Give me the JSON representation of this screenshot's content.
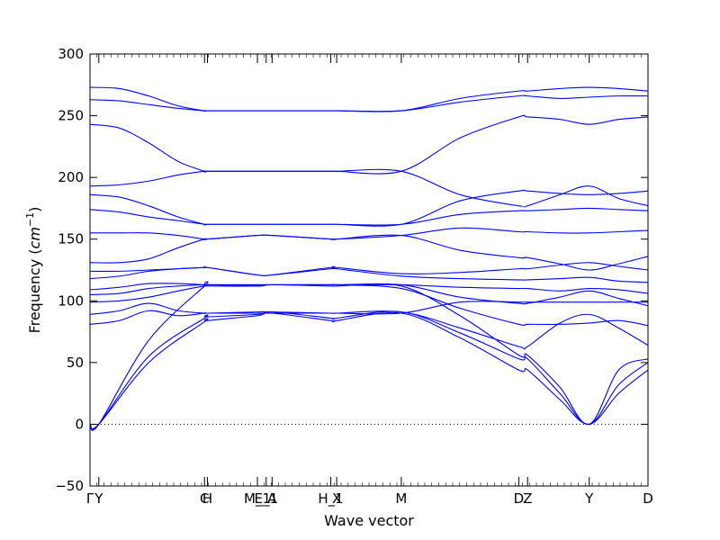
{
  "chart_data": {
    "type": "line",
    "title": "",
    "xlabel": "Wave vector",
    "ylabel": "Frequency",
    "ylabel_unit": "cm",
    "ylabel_unit_exponent": "−1",
    "ylim": [
      -50,
      300
    ],
    "yticks": [
      -50,
      0,
      50,
      100,
      150,
      200,
      250,
      300
    ],
    "xlim": [
      0,
      9.5
    ],
    "xticks": [
      {
        "pos": 0.0,
        "label": "Γ"
      },
      {
        "pos": 0.15,
        "label": "Y"
      },
      {
        "pos": 1.95,
        "label": "C"
      },
      {
        "pos": 2.0,
        "label": "H"
      },
      {
        "pos": 2.85,
        "label": "M_1"
      },
      {
        "pos": 3.0,
        "label": "E_1"
      },
      {
        "pos": 3.1,
        "label": "A"
      },
      {
        "pos": 4.1,
        "label": "H_1"
      },
      {
        "pos": 4.2,
        "label": "X"
      },
      {
        "pos": 5.3,
        "label": "M"
      },
      {
        "pos": 7.3,
        "label": "D"
      },
      {
        "pos": 7.45,
        "label": "Z"
      },
      {
        "pos": 8.5,
        "label": "Y"
      },
      {
        "pos": 9.5,
        "label": "D"
      }
    ],
    "zero_line": true,
    "line_color": "#0000ff",
    "series": [
      {
        "x": [
          0,
          0.15,
          1.0,
          1.95,
          2.0,
          2.85,
          3.1,
          4.1,
          4.2,
          5.3,
          6.3,
          7.3,
          7.45,
          8.0,
          8.5,
          9.0,
          9.5
        ],
        "y": [
          0,
          0,
          50,
          83,
          84,
          88,
          90,
          84,
          84,
          90,
          70,
          44,
          44,
          20,
          0,
          25,
          44
        ]
      },
      {
        "x": [
          0,
          0.15,
          1.0,
          1.95,
          2.0,
          2.85,
          3.1,
          4.1,
          4.2,
          5.3,
          6.3,
          7.3,
          7.45,
          8.0,
          8.5,
          9.0,
          9.5
        ],
        "y": [
          0,
          0,
          55,
          86,
          87,
          89,
          91,
          86,
          86,
          91,
          74,
          53,
          53,
          25,
          0,
          32,
          50
        ]
      },
      {
        "x": [
          0,
          0.15,
          1.0,
          1.95,
          2.0,
          2.85,
          3.1,
          4.1,
          4.2,
          5.3,
          6.3,
          7.3,
          7.45,
          8.0,
          8.5,
          9.0,
          9.5
        ],
        "y": [
          0,
          0,
          68,
          112,
          113,
          112,
          113,
          112,
          112,
          112,
          88,
          56,
          56,
          30,
          0,
          44,
          53
        ]
      },
      {
        "x": [
          0,
          0.5,
          1.0,
          1.5,
          1.95,
          2.0,
          2.85,
          3.1,
          4.1,
          4.2,
          5.3,
          6.3,
          7.3,
          7.45,
          8.0,
          8.5,
          9.0,
          9.5
        ],
        "y": [
          81,
          84,
          92,
          88,
          90,
          90,
          90,
          90,
          90,
          90,
          90,
          99,
          99,
          99,
          99,
          99,
          99,
          99
        ]
      },
      {
        "x": [
          0,
          0.5,
          1.0,
          1.5,
          1.95,
          2.0,
          2.85,
          3.1,
          4.1,
          4.2,
          5.3,
          6.3,
          7.3,
          7.45,
          8.0,
          8.5,
          9.0,
          9.5
        ],
        "y": [
          89,
          92,
          98,
          92,
          90,
          90,
          91,
          91,
          90,
          90,
          91,
          78,
          63,
          63,
          82,
          89,
          78,
          64
        ]
      },
      {
        "x": [
          0,
          0.5,
          1.0,
          1.5,
          1.95,
          2.0,
          2.85,
          3.1,
          4.1,
          4.2,
          5.3,
          6.3,
          7.3,
          7.45,
          8.0,
          8.5,
          9.0,
          9.5
        ],
        "y": [
          99,
          100,
          103,
          108,
          112,
          112,
          112,
          113,
          113,
          113,
          110,
          94,
          81,
          81,
          81,
          82,
          84,
          80
        ]
      },
      {
        "x": [
          0,
          0.5,
          1.0,
          1.5,
          1.95,
          2.0,
          2.85,
          3.1,
          4.1,
          4.2,
          5.3,
          6.3,
          7.3,
          7.45,
          8.0,
          8.5,
          9.0,
          9.5
        ],
        "y": [
          105,
          106,
          110,
          112,
          113,
          113,
          113,
          113,
          113,
          113,
          113,
          103,
          98,
          98,
          103,
          108,
          102,
          96
        ]
      },
      {
        "x": [
          0,
          0.5,
          1.0,
          1.5,
          1.95,
          2.0,
          2.85,
          3.1,
          4.1,
          4.2,
          5.3,
          6.3,
          7.3,
          7.45,
          8.0,
          8.5,
          9.0,
          9.5
        ],
        "y": [
          109,
          111,
          114,
          114,
          113,
          113,
          113,
          113,
          113,
          113,
          113,
          111,
          110,
          110,
          108,
          110,
          109,
          106
        ]
      },
      {
        "x": [
          0,
          0.5,
          1.0,
          1.5,
          1.95,
          2.0,
          2.85,
          3.1,
          4.1,
          4.2,
          5.3,
          6.3,
          7.3,
          7.45,
          8.0,
          8.5,
          9.0,
          9.5
        ],
        "y": [
          118,
          120,
          124,
          126,
          127,
          127,
          121,
          121,
          126,
          126,
          120,
          118,
          117,
          117,
          118,
          119,
          116,
          115
        ]
      },
      {
        "x": [
          0,
          0.5,
          1.0,
          1.5,
          1.95,
          2.0,
          2.85,
          3.1,
          4.1,
          4.2,
          5.3,
          6.3,
          7.3,
          7.45,
          8.0,
          8.5,
          9.0,
          9.5
        ],
        "y": [
          124,
          124,
          125,
          126,
          127,
          127,
          121,
          121,
          127,
          127,
          122,
          123,
          126,
          126,
          129,
          131,
          128,
          125
        ]
      },
      {
        "x": [
          0,
          0.5,
          1.0,
          1.5,
          1.95,
          2.0,
          2.85,
          3.1,
          4.1,
          4.2,
          5.3,
          6.3,
          7.3,
          7.45,
          8.0,
          8.5,
          9.0,
          9.5
        ],
        "y": [
          131,
          131,
          134,
          143,
          150,
          150,
          153,
          153,
          150,
          150,
          153,
          141,
          135,
          135,
          130,
          125,
          130,
          136
        ]
      },
      {
        "x": [
          0,
          0.5,
          1.0,
          1.5,
          1.95,
          2.0,
          2.85,
          3.1,
          4.1,
          4.2,
          5.3,
          6.3,
          7.3,
          7.45,
          8.0,
          8.5,
          9.0,
          9.5
        ],
        "y": [
          155,
          155,
          155,
          153,
          150,
          150,
          153,
          153,
          150,
          150,
          153,
          159,
          156,
          156,
          155,
          155,
          156,
          157
        ]
      },
      {
        "x": [
          0,
          0.5,
          1.0,
          1.5,
          1.95,
          2.0,
          2.85,
          3.1,
          4.1,
          4.2,
          5.3,
          6.3,
          7.3,
          7.45,
          8.0,
          8.5,
          9.0,
          9.5
        ],
        "y": [
          174,
          172,
          168,
          165,
          162,
          162,
          162,
          162,
          162,
          162,
          162,
          170,
          173,
          173,
          174,
          175,
          174,
          173
        ]
      },
      {
        "x": [
          0,
          0.5,
          1.0,
          1.5,
          1.95,
          2.0,
          2.85,
          3.1,
          4.1,
          4.2,
          5.3,
          6.3,
          7.3,
          7.45,
          8.0,
          8.5,
          9.0,
          9.5
        ],
        "y": [
          186,
          184,
          177,
          168,
          162,
          162,
          162,
          162,
          162,
          162,
          162,
          181,
          189,
          189,
          187,
          186,
          187,
          189
        ]
      },
      {
        "x": [
          0,
          0.5,
          1.0,
          1.5,
          1.95,
          2.0,
          2.85,
          3.1,
          4.1,
          4.2,
          5.3,
          6.3,
          7.3,
          7.45,
          8.0,
          8.5,
          9.0,
          9.5
        ],
        "y": [
          193,
          194,
          197,
          202,
          205,
          205,
          205,
          205,
          205,
          205,
          205,
          186,
          177,
          177,
          186,
          193,
          183,
          177
        ]
      },
      {
        "x": [
          0,
          0.5,
          1.0,
          1.5,
          1.95,
          2.0,
          2.85,
          3.1,
          4.1,
          4.2,
          5.3,
          6.3,
          7.3,
          7.45,
          8.0,
          8.5,
          9.0,
          9.5
        ],
        "y": [
          243,
          240,
          228,
          213,
          205,
          205,
          205,
          205,
          205,
          205,
          205,
          232,
          249,
          249,
          247,
          243,
          247,
          249
        ]
      },
      {
        "x": [
          0,
          0.5,
          1.0,
          1.5,
          1.95,
          2.0,
          2.85,
          3.1,
          4.1,
          4.2,
          5.3,
          6.3,
          7.3,
          7.45,
          8.0,
          8.5,
          9.0,
          9.5
        ],
        "y": [
          263,
          262,
          259,
          256,
          254,
          254,
          254,
          254,
          254,
          254,
          254,
          261,
          266,
          266,
          264,
          265,
          266,
          266
        ]
      },
      {
        "x": [
          0,
          0.5,
          1.0,
          1.5,
          1.95,
          2.0,
          2.85,
          3.1,
          4.1,
          4.2,
          5.3,
          6.3,
          7.3,
          7.45,
          8.0,
          8.5,
          9.0,
          9.5
        ],
        "y": [
          273,
          272,
          266,
          258,
          254,
          254,
          254,
          254,
          254,
          254,
          254,
          264,
          270,
          270,
          272,
          273,
          272,
          270
        ]
      }
    ]
  }
}
